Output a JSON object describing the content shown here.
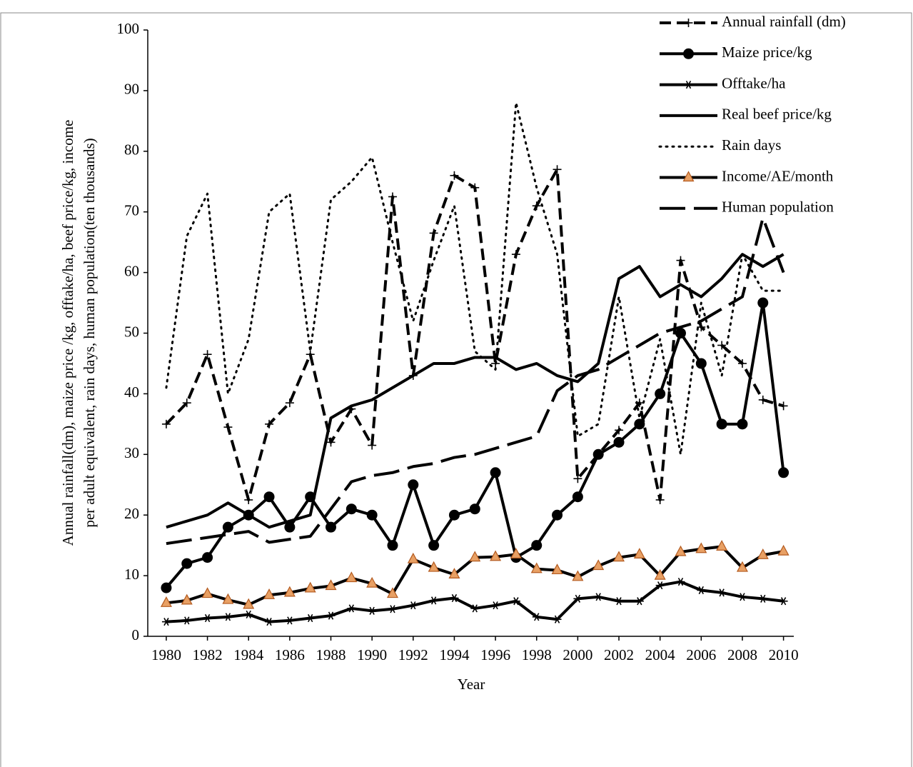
{
  "chart_data": {
    "type": "line",
    "y_label": [
      "Annual rainfall(dm), maize price /kg, offtake/ha, beef price/kg, income",
      "per adult equivalent, rain days,  human population(ten thousands)"
    ],
    "x_label": "Year",
    "x": [
      1980,
      1981,
      1982,
      1983,
      1984,
      1985,
      1986,
      1987,
      1988,
      1989,
      1990,
      1991,
      1992,
      1993,
      1994,
      1995,
      1996,
      1997,
      1998,
      1999,
      2000,
      2001,
      2002,
      2003,
      2004,
      2005,
      2006,
      2007,
      2008,
      2009,
      2010
    ],
    "xlim": [
      1979.1,
      2010.5
    ],
    "xticks": [
      1980,
      1982,
      1984,
      1986,
      1988,
      1990,
      1992,
      1994,
      1996,
      1998,
      2000,
      2002,
      2004,
      2006,
      2008,
      2010
    ],
    "ylim": [
      0,
      100
    ],
    "yticks": [
      0,
      10,
      20,
      30,
      40,
      50,
      60,
      70,
      80,
      90,
      100
    ],
    "legend": "top-right",
    "series": [
      {
        "name": "Annual rainfall (dm)",
        "color": "#000000",
        "style": "dashed",
        "marker": "plus",
        "values": [
          35,
          38.5,
          46.5,
          34.5,
          22.5,
          35,
          38.5,
          46.5,
          32,
          37.5,
          31.5,
          72.5,
          43,
          66.5,
          76,
          74,
          45,
          63,
          71,
          77,
          26,
          30,
          34,
          38.5,
          22.5,
          62,
          51,
          48,
          45,
          39,
          38
        ]
      },
      {
        "name": "Maize price/kg",
        "color": "#000000",
        "style": "solid",
        "marker": "circle",
        "values": [
          8,
          12,
          13,
          18,
          20,
          23,
          18,
          23,
          18,
          21,
          20,
          15,
          25,
          15,
          20,
          21,
          27,
          13,
          15,
          20,
          23,
          30,
          32,
          35,
          40,
          50,
          45,
          35,
          35,
          55,
          27
        ]
      },
      {
        "name": "Offtake/ha",
        "color": "#000000",
        "style": "solid",
        "marker": "asterisk",
        "values": [
          2.4,
          2.6,
          3,
          3.2,
          3.6,
          2.4,
          2.6,
          3,
          3.4,
          4.6,
          4.2,
          4.5,
          5.1,
          5.9,
          6.3,
          4.6,
          5.1,
          5.8,
          3.2,
          2.8,
          6.2,
          6.5,
          5.8,
          5.8,
          8.4,
          9,
          7.6,
          7.2,
          6.5,
          6.2,
          5.8
        ]
      },
      {
        "name": "Real beef price/kg",
        "color": "#000000",
        "style": "solid",
        "marker": "none",
        "values": [
          18,
          19,
          20,
          22,
          20,
          18,
          19,
          20,
          36,
          38,
          39,
          41,
          43,
          45,
          45,
          46,
          46,
          44,
          45,
          43,
          42,
          45,
          59,
          61,
          56,
          58,
          56,
          59,
          63,
          61,
          63
        ]
      },
      {
        "name": "Rain days",
        "color": "#000000",
        "style": "dotted",
        "marker": "none",
        "values": [
          41,
          66,
          73,
          40,
          49,
          70,
          73,
          47,
          72,
          75,
          79,
          65,
          52,
          62,
          71,
          47,
          44,
          88,
          74,
          63,
          33,
          35,
          56,
          36,
          49,
          30,
          55,
          43,
          63,
          57,
          57
        ]
      },
      {
        "name": "Income/AE/month",
        "color": "#000000",
        "style": "solid",
        "marker": "triangle",
        "marker_color": "#e8a064",
        "values": [
          5.5,
          5.9,
          7,
          6,
          5.2,
          6.8,
          7.2,
          7.9,
          8.3,
          9.6,
          8.7,
          7,
          12.7,
          11.3,
          10.2,
          13,
          13.1,
          13.5,
          11.1,
          10.9,
          9.8,
          11.6,
          13,
          13.5,
          10,
          13.9,
          14.4,
          14.8,
          11.3,
          13.4,
          14
        ]
      },
      {
        "name": "Human population",
        "color": "#000000",
        "style": "longdash",
        "marker": "none",
        "values": [
          15.3,
          15.8,
          16.3,
          16.8,
          17.3,
          15.5,
          16,
          16.5,
          21,
          25.5,
          26.5,
          27,
          28,
          28.5,
          29.5,
          30,
          31,
          32,
          33,
          40.5,
          43,
          44,
          46,
          48,
          50,
          51,
          52,
          54,
          56,
          69,
          60
        ]
      }
    ]
  }
}
